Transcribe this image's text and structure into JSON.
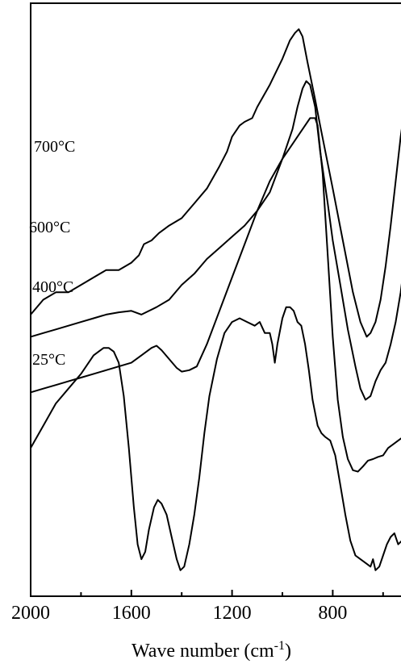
{
  "chart_data": {
    "type": "line",
    "title": "",
    "xlabel": "Wave number (cm⁻¹)",
    "xlabel_main": "Wave number (cm",
    "xlabel_sup": "-1",
    "xlabel_close": ")",
    "ylabel": "",
    "x_reversed": true,
    "xlim": [
      2000,
      500
    ],
    "y_axis_values_shown": false,
    "x_ticks": [
      2000,
      1600,
      1200,
      800
    ],
    "x_tick_labels": [
      "2000",
      "1600",
      "1200",
      "800"
    ],
    "x_minor_ticks": [
      1800,
      1400,
      1000,
      600
    ],
    "series": [
      {
        "name": "700°C",
        "points": [
          [
            2000,
            0.28
          ],
          [
            1950,
            0.3
          ],
          [
            1900,
            0.31
          ],
          [
            1850,
            0.31
          ],
          [
            1800,
            0.32
          ],
          [
            1750,
            0.33
          ],
          [
            1700,
            0.34
          ],
          [
            1650,
            0.34
          ],
          [
            1600,
            0.35
          ],
          [
            1570,
            0.36
          ],
          [
            1550,
            0.375
          ],
          [
            1520,
            0.38
          ],
          [
            1490,
            0.39
          ],
          [
            1470,
            0.395
          ],
          [
            1450,
            0.4
          ],
          [
            1400,
            0.41
          ],
          [
            1350,
            0.43
          ],
          [
            1300,
            0.45
          ],
          [
            1250,
            0.48
          ],
          [
            1220,
            0.5
          ],
          [
            1200,
            0.52
          ],
          [
            1170,
            0.535
          ],
          [
            1150,
            0.54
          ],
          [
            1120,
            0.545
          ],
          [
            1100,
            0.56
          ],
          [
            1050,
            0.59
          ],
          [
            1000,
            0.625
          ],
          [
            970,
            0.65
          ],
          [
            950,
            0.66
          ],
          [
            935,
            0.665
          ],
          [
            920,
            0.655
          ],
          [
            900,
            0.62
          ],
          [
            870,
            0.57
          ],
          [
            850,
            0.535
          ],
          [
            800,
            0.45
          ],
          [
            760,
            0.38
          ],
          [
            720,
            0.31
          ],
          [
            690,
            0.27
          ],
          [
            665,
            0.25
          ],
          [
            650,
            0.255
          ],
          [
            630,
            0.27
          ],
          [
            610,
            0.3
          ],
          [
            590,
            0.345
          ],
          [
            570,
            0.4
          ],
          [
            550,
            0.46
          ],
          [
            530,
            0.52
          ],
          [
            520,
            0.545
          ],
          [
            510,
            0.555
          ],
          [
            500,
            0.545
          ]
        ]
      },
      {
        "name": "600°C",
        "points": [
          [
            2000,
            0.25
          ],
          [
            1950,
            0.255
          ],
          [
            1900,
            0.26
          ],
          [
            1850,
            0.265
          ],
          [
            1800,
            0.27
          ],
          [
            1750,
            0.275
          ],
          [
            1700,
            0.28
          ],
          [
            1650,
            0.283
          ],
          [
            1600,
            0.285
          ],
          [
            1560,
            0.28
          ],
          [
            1500,
            0.29
          ],
          [
            1450,
            0.3
          ],
          [
            1400,
            0.32
          ],
          [
            1350,
            0.335
          ],
          [
            1300,
            0.355
          ],
          [
            1250,
            0.37
          ],
          [
            1200,
            0.385
          ],
          [
            1150,
            0.4
          ],
          [
            1100,
            0.42
          ],
          [
            1050,
            0.445
          ],
          [
            1000,
            0.49
          ],
          [
            960,
            0.53
          ],
          [
            940,
            0.56
          ],
          [
            920,
            0.585
          ],
          [
            905,
            0.595
          ],
          [
            890,
            0.59
          ],
          [
            870,
            0.56
          ],
          [
            850,
            0.5
          ],
          [
            820,
            0.43
          ],
          [
            800,
            0.38
          ],
          [
            770,
            0.32
          ],
          [
            740,
            0.26
          ],
          [
            710,
            0.21
          ],
          [
            690,
            0.18
          ],
          [
            670,
            0.165
          ],
          [
            650,
            0.17
          ],
          [
            630,
            0.19
          ],
          [
            610,
            0.205
          ],
          [
            590,
            0.215
          ],
          [
            570,
            0.24
          ],
          [
            550,
            0.27
          ],
          [
            530,
            0.31
          ],
          [
            510,
            0.365
          ],
          [
            500,
            0.385
          ]
        ]
      },
      {
        "name": "400°C",
        "points": [
          [
            2000,
            0.175
          ],
          [
            1950,
            0.18
          ],
          [
            1900,
            0.185
          ],
          [
            1850,
            0.19
          ],
          [
            1800,
            0.195
          ],
          [
            1750,
            0.2
          ],
          [
            1700,
            0.205
          ],
          [
            1650,
            0.21
          ],
          [
            1600,
            0.215
          ],
          [
            1560,
            0.225
          ],
          [
            1520,
            0.235
          ],
          [
            1500,
            0.238
          ],
          [
            1480,
            0.232
          ],
          [
            1450,
            0.22
          ],
          [
            1420,
            0.208
          ],
          [
            1400,
            0.203
          ],
          [
            1370,
            0.205
          ],
          [
            1340,
            0.21
          ],
          [
            1300,
            0.24
          ],
          [
            1250,
            0.285
          ],
          [
            1200,
            0.33
          ],
          [
            1150,
            0.375
          ],
          [
            1100,
            0.42
          ],
          [
            1050,
            0.46
          ],
          [
            1000,
            0.49
          ],
          [
            960,
            0.51
          ],
          [
            930,
            0.525
          ],
          [
            910,
            0.535
          ],
          [
            890,
            0.545
          ],
          [
            870,
            0.545
          ],
          [
            860,
            0.535
          ],
          [
            840,
            0.47
          ],
          [
            820,
            0.36
          ],
          [
            800,
            0.25
          ],
          [
            780,
            0.165
          ],
          [
            760,
            0.115
          ],
          [
            740,
            0.085
          ],
          [
            720,
            0.07
          ],
          [
            700,
            0.068
          ],
          [
            680,
            0.075
          ],
          [
            660,
            0.083
          ],
          [
            640,
            0.085
          ],
          [
            620,
            0.088
          ],
          [
            600,
            0.09
          ],
          [
            580,
            0.1
          ],
          [
            560,
            0.105
          ],
          [
            540,
            0.11
          ],
          [
            520,
            0.115
          ],
          [
            505,
            0.115
          ],
          [
            500,
            0.11
          ]
        ]
      },
      {
        "name": "25°C",
        "points": [
          [
            2000,
            0.1
          ],
          [
            1950,
            0.13
          ],
          [
            1900,
            0.16
          ],
          [
            1850,
            0.18
          ],
          [
            1800,
            0.2
          ],
          [
            1770,
            0.215
          ],
          [
            1750,
            0.225
          ],
          [
            1730,
            0.23
          ],
          [
            1710,
            0.235
          ],
          [
            1690,
            0.235
          ],
          [
            1670,
            0.23
          ],
          [
            1650,
            0.215
          ],
          [
            1630,
            0.17
          ],
          [
            1610,
            0.1
          ],
          [
            1590,
            0.02
          ],
          [
            1575,
            -0.03
          ],
          [
            1560,
            -0.05
          ],
          [
            1545,
            -0.04
          ],
          [
            1530,
            -0.01
          ],
          [
            1510,
            0.02
          ],
          [
            1495,
            0.03
          ],
          [
            1480,
            0.025
          ],
          [
            1460,
            0.01
          ],
          [
            1440,
            -0.02
          ],
          [
            1420,
            -0.05
          ],
          [
            1405,
            -0.065
          ],
          [
            1390,
            -0.06
          ],
          [
            1370,
            -0.03
          ],
          [
            1350,
            0.01
          ],
          [
            1330,
            0.06
          ],
          [
            1310,
            0.12
          ],
          [
            1290,
            0.17
          ],
          [
            1260,
            0.22
          ],
          [
            1230,
            0.255
          ],
          [
            1200,
            0.27
          ],
          [
            1170,
            0.275
          ],
          [
            1140,
            0.27
          ],
          [
            1110,
            0.265
          ],
          [
            1090,
            0.27
          ],
          [
            1070,
            0.255
          ],
          [
            1050,
            0.255
          ],
          [
            1040,
            0.24
          ],
          [
            1030,
            0.215
          ],
          [
            1020,
            0.24
          ],
          [
            1000,
            0.275
          ],
          [
            985,
            0.29
          ],
          [
            970,
            0.29
          ],
          [
            955,
            0.285
          ],
          [
            940,
            0.27
          ],
          [
            925,
            0.265
          ],
          [
            910,
            0.24
          ],
          [
            895,
            0.205
          ],
          [
            880,
            0.165
          ],
          [
            860,
            0.13
          ],
          [
            845,
            0.12
          ],
          [
            830,
            0.115
          ],
          [
            810,
            0.11
          ],
          [
            790,
            0.09
          ],
          [
            770,
            0.05
          ],
          [
            750,
            0.01
          ],
          [
            730,
            -0.025
          ],
          [
            710,
            -0.045
          ],
          [
            690,
            -0.05
          ],
          [
            670,
            -0.055
          ],
          [
            650,
            -0.06
          ],
          [
            640,
            -0.05
          ],
          [
            630,
            -0.065
          ],
          [
            615,
            -0.06
          ],
          [
            600,
            -0.045
          ],
          [
            585,
            -0.03
          ],
          [
            570,
            -0.02
          ],
          [
            555,
            -0.015
          ],
          [
            540,
            -0.03
          ],
          [
            525,
            -0.025
          ],
          [
            510,
            -0.01
          ],
          [
            500,
            0.01
          ]
        ]
      }
    ]
  }
}
